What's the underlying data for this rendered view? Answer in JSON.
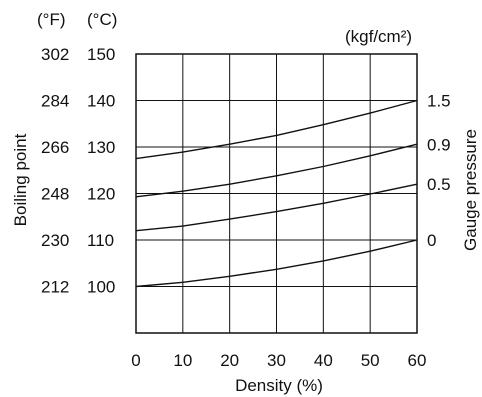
{
  "chart_data": {
    "type": "line",
    "x": [
      0,
      10,
      20,
      30,
      40,
      50,
      60
    ],
    "x_ticks": [
      "0",
      "10",
      "20",
      "30",
      "40",
      "50",
      "60"
    ],
    "xlabel": "Density (%)",
    "xlim": [
      0,
      60
    ],
    "ylabel_left": "Boiling point",
    "ylabel_right": "Gauge pressure",
    "unit_f": "(°F)",
    "unit_c": "(°C)",
    "unit_right": "(kgf/cm²)",
    "ylim": [
      90,
      150
    ],
    "y_ticks_c": [
      "150",
      "140",
      "130",
      "120",
      "110",
      "100"
    ],
    "y_ticks_f": [
      "302",
      "284",
      "266",
      "248",
      "230",
      "212"
    ],
    "y_tick_values_c": [
      150,
      140,
      130,
      120,
      110,
      100
    ],
    "right_ticks": [
      {
        "label": "1.5",
        "value_c": 140
      },
      {
        "label": "0.9",
        "value_c": 130.5
      },
      {
        "label": "0.5",
        "value_c": 122
      },
      {
        "label": "0",
        "value_c": 110
      }
    ],
    "grid": true,
    "series": [
      {
        "pressure": "1.5",
        "values": [
          127.5,
          128.9,
          130.6,
          132.5,
          134.8,
          137.3,
          140.0
        ]
      },
      {
        "pressure": "0.9",
        "values": [
          119.3,
          120.5,
          122.0,
          123.8,
          125.8,
          128.1,
          130.6
        ]
      },
      {
        "pressure": "0.5",
        "values": [
          112.0,
          113.0,
          114.5,
          116.1,
          117.9,
          119.9,
          122.0
        ]
      },
      {
        "pressure": "0",
        "values": [
          100.0,
          100.9,
          102.2,
          103.7,
          105.5,
          107.6,
          110.0
        ]
      }
    ],
    "colors": {
      "line": "#111111",
      "grid": "#111111"
    }
  }
}
